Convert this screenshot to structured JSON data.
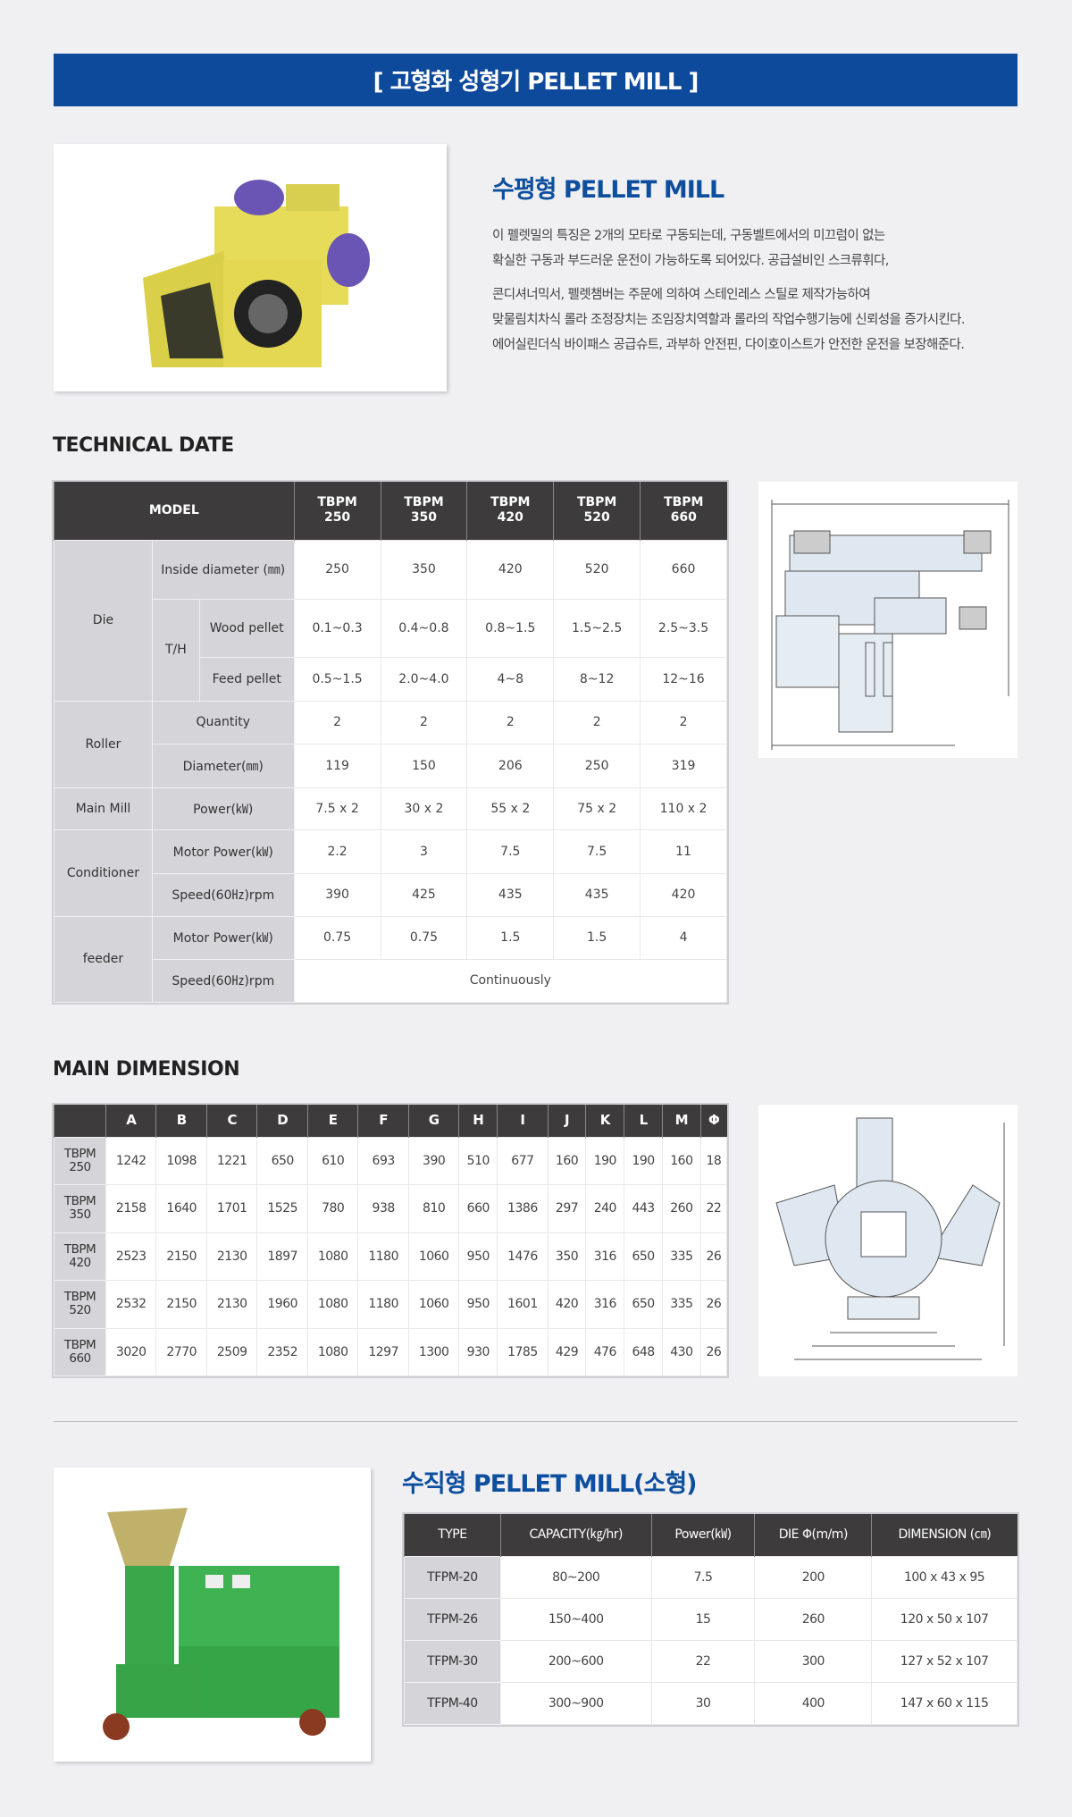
{
  "banner": {
    "title": "[ 고형화 성형기 PELLET MILL ]",
    "color": "#0e4a9c"
  },
  "horizontal": {
    "title": "수평형 PELLET MILL",
    "paragraph1": [
      "이 펠렛밀의 특징은 2개의 모타로 구동되는데, 구동벨트에서의 미끄럼이 없는",
      "확실한 구동과 부드러운 운전이 가능하도록 되어있다. 공급설비인 스크류휘다,"
    ],
    "paragraph2": [
      "콘디셔너믹서, 펠렛챔버는 주문에 의하여 스테인레스 스틸로 제작가능하여",
      "맞물림치차식 롤라 조정장치는 조임장치역할과 롤라의 작업수행기능에 신뢰성을 증가시킨다.",
      "에어실린더식 바이패스 공급슈트, 과부하 안전핀, 다이호이스트가 안전한 운전을 보장해준다."
    ]
  },
  "technical": {
    "heading": "TECHNICAL DATE",
    "model_label": "MODEL",
    "models": [
      [
        "TBPM",
        "250"
      ],
      [
        "TBPM",
        "350"
      ],
      [
        "TBPM",
        "420"
      ],
      [
        "TBPM",
        "520"
      ],
      [
        "TBPM",
        "660"
      ]
    ],
    "labels": {
      "die": "Die",
      "inside_diameter": "Inside diameter (㎜)",
      "th": "T/H",
      "wood_pellet": "Wood pellet",
      "feed_pellet": "Feed pellet",
      "roller": "Roller",
      "quantity": "Quantity",
      "diameter": "Diameter(㎜)",
      "main_mill": "Main Mill",
      "power": "Power(㎾)",
      "conditioner": "Conditioner",
      "motor_power": "Motor Power(㎾)",
      "speed": "Speed(60㎐)rpm",
      "feeder": "feeder",
      "feeder_motor_power": "Motor Power(㎾)",
      "feeder_speed": "Speed(60㎐)rpm"
    },
    "rows": [
      [
        "250",
        "350",
        "420",
        "520",
        "660"
      ],
      [
        "0.1~0.3",
        "0.4~0.8",
        "0.8~1.5",
        "1.5~2.5",
        "2.5~3.5"
      ],
      [
        "0.5~1.5",
        "2.0~4.0",
        "4~8",
        "8~12",
        "12~16"
      ],
      [
        "2",
        "2",
        "2",
        "2",
        "2"
      ],
      [
        "119",
        "150",
        "206",
        "250",
        "319"
      ],
      [
        "7.5 x 2",
        "30 x 2",
        "55 x 2",
        "75 x 2",
        "110 x 2"
      ],
      [
        "2.2",
        "3",
        "7.5",
        "7.5",
        "11"
      ],
      [
        "390",
        "425",
        "435",
        "435",
        "420"
      ],
      [
        "0.75",
        "0.75",
        "1.5",
        "1.5",
        "4"
      ]
    ],
    "feeder_speed_value": "Continuously"
  },
  "dimension": {
    "heading": "MAIN DIMENSION",
    "columns": [
      "A",
      "B",
      "C",
      "D",
      "E",
      "F",
      "G",
      "H",
      "I",
      "J",
      "K",
      "L",
      "M",
      "Φ"
    ],
    "rows": [
      {
        "model": [
          "TBPM",
          "250"
        ],
        "values": [
          "1242",
          "1098",
          "1221",
          "650",
          "610",
          "693",
          "390",
          "510",
          "677",
          "160",
          "190",
          "190",
          "160",
          "18"
        ]
      },
      {
        "model": [
          "TBPM",
          "350"
        ],
        "values": [
          "2158",
          "1640",
          "1701",
          "1525",
          "780",
          "938",
          "810",
          "660",
          "1386",
          "297",
          "240",
          "443",
          "260",
          "22"
        ]
      },
      {
        "model": [
          "TBPM",
          "420"
        ],
        "values": [
          "2523",
          "2150",
          "2130",
          "1897",
          "1080",
          "1180",
          "1060",
          "950",
          "1476",
          "350",
          "316",
          "650",
          "335",
          "26"
        ]
      },
      {
        "model": [
          "TBPM",
          "520"
        ],
        "values": [
          "2532",
          "2150",
          "2130",
          "1960",
          "1080",
          "1180",
          "1060",
          "950",
          "1601",
          "420",
          "316",
          "650",
          "335",
          "26"
        ]
      },
      {
        "model": [
          "TBPM",
          "660"
        ],
        "values": [
          "3020",
          "2770",
          "2509",
          "2352",
          "1080",
          "1297",
          "1300",
          "930",
          "1785",
          "429",
          "476",
          "648",
          "430",
          "26"
        ]
      }
    ]
  },
  "vertical": {
    "title": "수직형 PELLET MILL(소형)",
    "columns": [
      "TYPE",
      "CAPACITY(㎏/hr)",
      "Power(㎾)",
      "DIE Φ(m/m)",
      "DIMENSION (㎝)"
    ],
    "rows": [
      [
        "TFPM-20",
        "80~200",
        "7.5",
        "200",
        "100 x 43 x 95"
      ],
      [
        "TFPM-26",
        "150~400",
        "15",
        "260",
        "120 x 50 x 107"
      ],
      [
        "TFPM-30",
        "200~600",
        "22",
        "300",
        "127 x 52 x 107"
      ],
      [
        "TFPM-40",
        "300~900",
        "30",
        "400",
        "147 x 60 x 115"
      ]
    ]
  }
}
